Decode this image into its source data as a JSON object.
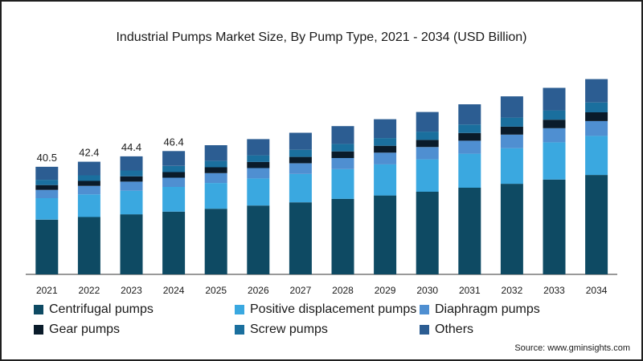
{
  "title": "Industrial Pumps Market Size, By Pump Type, 2021 - 2034 (USD Billion)",
  "source": "Source: www.gminsights.com",
  "chart_data": {
    "type": "bar",
    "stacked": true,
    "title": "Industrial Pumps Market Size, By Pump Type, 2021 - 2034 (USD Billion)",
    "xlabel": "",
    "ylabel": "",
    "ylim": [
      0,
      85
    ],
    "grid": false,
    "legend_position": "bottom",
    "categories": [
      "2021",
      "2022",
      "2023",
      "2024",
      "2025",
      "2026",
      "2027",
      "2028",
      "2029",
      "2030",
      "2031",
      "2032",
      "2033",
      "2034"
    ],
    "totals": [
      40.5,
      42.4,
      44.4,
      46.4,
      48.6,
      50.9,
      53.3,
      55.8,
      58.4,
      61.1,
      64.0,
      67.0,
      70.2,
      73.5
    ],
    "total_labels": [
      "40.5",
      "42.4",
      "44.4",
      "46.4",
      "",
      "",
      "",
      "",
      "",
      "",
      "",
      "",
      "",
      ""
    ],
    "series": [
      {
        "name": "Centrifugal pumps",
        "color": "#0e4a63",
        "values": [
          20.6,
          21.6,
          22.6,
          23.6,
          24.7,
          25.9,
          27.1,
          28.4,
          29.7,
          31.1,
          32.6,
          34.1,
          35.7,
          37.4
        ]
      },
      {
        "name": "Positive displacement pumps",
        "color": "#3aa8e0",
        "values": [
          8.1,
          8.5,
          8.9,
          9.3,
          9.7,
          10.2,
          10.7,
          11.2,
          11.7,
          12.2,
          12.8,
          13.4,
          14.0,
          14.7
        ]
      },
      {
        "name": "Diaphragm pumps",
        "color": "#4f8fd1",
        "values": [
          3.1,
          3.2,
          3.4,
          3.5,
          3.7,
          3.9,
          4.0,
          4.2,
          4.4,
          4.6,
          4.9,
          5.1,
          5.3,
          5.6
        ]
      },
      {
        "name": "Gear pumps",
        "color": "#0a1b2a",
        "values": [
          1.8,
          1.9,
          2.0,
          2.1,
          2.2,
          2.3,
          2.4,
          2.5,
          2.6,
          2.7,
          2.9,
          3.0,
          3.2,
          3.3
        ]
      },
      {
        "name": "Screw pumps",
        "color": "#1a6f9e",
        "values": [
          2.0,
          2.1,
          2.2,
          2.3,
          2.4,
          2.5,
          2.7,
          2.8,
          2.9,
          3.1,
          3.2,
          3.4,
          3.5,
          3.7
        ]
      },
      {
        "name": "Others",
        "color": "#2c5d92",
        "values": [
          4.9,
          5.1,
          5.3,
          5.6,
          5.9,
          6.1,
          6.4,
          6.7,
          7.1,
          7.4,
          7.6,
          8.0,
          8.5,
          8.8
        ]
      }
    ]
  }
}
